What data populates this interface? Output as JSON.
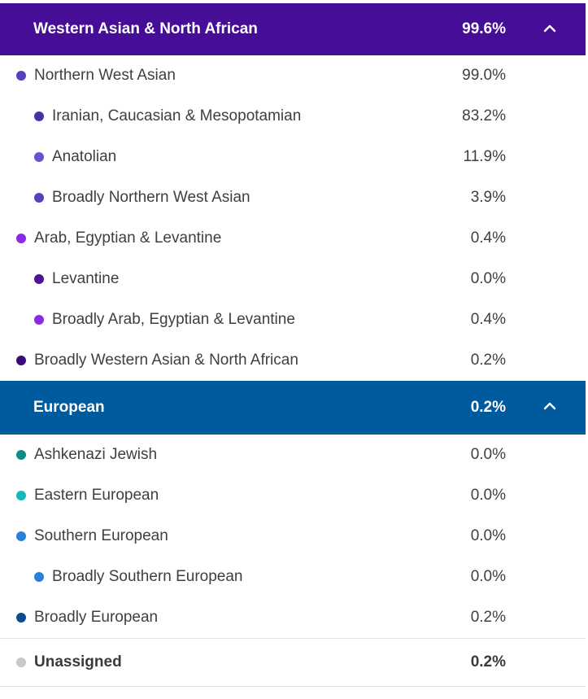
{
  "groups": [
    {
      "label": "Western Asian & North African",
      "percent": "99.6%",
      "color": "#460e97",
      "chevron": "chevron-up-icon",
      "items": [
        {
          "label": "Northern West Asian",
          "percent": "99.0%",
          "level": 1,
          "color": "#5b3fc1"
        },
        {
          "label": "Iranian, Caucasian & Mesopotamian",
          "percent": "83.2%",
          "level": 2,
          "color": "#4a2fa6"
        },
        {
          "label": "Anatolian",
          "percent": "11.9%",
          "level": 2,
          "color": "#6d4fcd"
        },
        {
          "label": "Broadly Northern West Asian",
          "percent": "3.9%",
          "level": 2,
          "color": "#5b3fc1"
        },
        {
          "label": "Arab, Egyptian & Levantine",
          "percent": "0.4%",
          "level": 1,
          "color": "#8a2be2"
        },
        {
          "label": "Levantine",
          "percent": "0.0%",
          "level": 2,
          "color": "#4b1597"
        },
        {
          "label": "Broadly Arab, Egyptian & Levantine",
          "percent": "0.4%",
          "level": 2,
          "color": "#8a2be2"
        },
        {
          "label": "Broadly Western Asian & North African",
          "percent": "0.2%",
          "level": 1,
          "color": "#3a0a7a"
        }
      ]
    },
    {
      "label": "European",
      "percent": "0.2%",
      "color": "#005a9e",
      "chevron": "chevron-up-icon",
      "items": [
        {
          "label": "Ashkenazi Jewish",
          "percent": "0.0%",
          "level": 1,
          "color": "#0f8a84"
        },
        {
          "label": "Eastern European",
          "percent": "0.0%",
          "level": 1,
          "color": "#17b8b8"
        },
        {
          "label": "Southern European",
          "percent": "0.0%",
          "level": 1,
          "color": "#2a7fd8"
        },
        {
          "label": "Broadly Southern European",
          "percent": "0.0%",
          "level": 2,
          "color": "#2a7fd8"
        },
        {
          "label": "Broadly European",
          "percent": "0.2%",
          "level": 1,
          "color": "#0b4d8c"
        }
      ]
    }
  ],
  "unassigned": {
    "label": "Unassigned",
    "percent": "0.2%",
    "color": "#c8c8c8"
  }
}
